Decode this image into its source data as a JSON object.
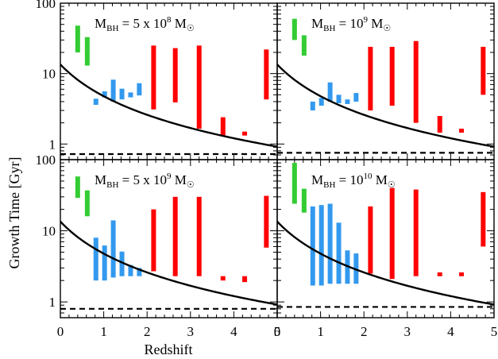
{
  "chart_data": {
    "type": "bar",
    "xlabel": "Redshift",
    "ylabel": "Growth Time [Gyr]",
    "xlim": [
      0,
      5
    ],
    "ylim": [
      0.6,
      100
    ],
    "yscale": "log",
    "grid": false,
    "x_ticks": [
      "0",
      "1",
      "2",
      "3",
      "4",
      "5"
    ],
    "y_ticks": [
      "1",
      "10",
      "100"
    ],
    "colors": {
      "green": "#33cc33",
      "blue": "#3399ee",
      "red": "#ff0000",
      "curve": "#000000"
    },
    "panels": [
      {
        "title_prefix": "M",
        "title_sub": "BH",
        "title_value": " = 5 x 10",
        "title_exp": "8",
        "title_unit": " M",
        "title_sun": "☉",
        "green": [
          {
            "x": 0.4,
            "lo": 20,
            "hi": 48
          },
          {
            "x": 0.62,
            "lo": 13,
            "hi": 33
          }
        ],
        "blue": [
          {
            "x": 0.82,
            "lo": 3.6,
            "hi": 4.4
          },
          {
            "x": 1.02,
            "lo": 4.6,
            "hi": 5.6
          },
          {
            "x": 1.22,
            "lo": 4.0,
            "hi": 8.2
          },
          {
            "x": 1.42,
            "lo": 4.3,
            "hi": 6.1
          },
          {
            "x": 1.62,
            "lo": 4.6,
            "hi": 5.4
          },
          {
            "x": 1.82,
            "lo": 4.9,
            "hi": 7.3
          }
        ],
        "red": [
          {
            "x": 2.15,
            "lo": 3.1,
            "hi": 25
          },
          {
            "x": 2.65,
            "lo": 3.9,
            "hi": 23
          },
          {
            "x": 3.2,
            "lo": 1.65,
            "hi": 25
          },
          {
            "x": 3.75,
            "lo": 1.28,
            "hi": 2.4
          },
          {
            "x": 4.25,
            "lo": 1.32,
            "hi": 1.5
          },
          {
            "x": 4.75,
            "lo": 4.3,
            "hi": 22
          }
        ],
        "curve_t0": 13.5,
        "dashed": 0.72
      },
      {
        "title_prefix": "M",
        "title_sub": "BH",
        "title_value": " = 10",
        "title_exp": "9",
        "title_unit": " M",
        "title_sun": "☉",
        "green": [
          {
            "x": 0.4,
            "lo": 30,
            "hi": 60
          },
          {
            "x": 0.62,
            "lo": 18,
            "hi": 35
          }
        ],
        "blue": [
          {
            "x": 0.82,
            "lo": 3.0,
            "hi": 4.0
          },
          {
            "x": 1.02,
            "lo": 3.5,
            "hi": 4.5
          },
          {
            "x": 1.22,
            "lo": 4.0,
            "hi": 7.5
          },
          {
            "x": 1.42,
            "lo": 3.8,
            "hi": 5.0
          },
          {
            "x": 1.62,
            "lo": 3.7,
            "hi": 4.3
          },
          {
            "x": 1.82,
            "lo": 4.0,
            "hi": 5.3
          }
        ],
        "red": [
          {
            "x": 2.15,
            "lo": 3.0,
            "hi": 24
          },
          {
            "x": 2.65,
            "lo": 3.5,
            "hi": 24
          },
          {
            "x": 3.2,
            "lo": 2.0,
            "hi": 29
          },
          {
            "x": 3.75,
            "lo": 1.45,
            "hi": 2.5
          },
          {
            "x": 4.25,
            "lo": 1.45,
            "hi": 1.65
          },
          {
            "x": 4.75,
            "lo": 5.0,
            "hi": 24
          }
        ],
        "curve_t0": 13.5,
        "dashed": 0.75
      },
      {
        "title_prefix": "M",
        "title_sub": "BH",
        "title_value": " = 5 x 10",
        "title_exp": "9",
        "title_unit": " M",
        "title_sun": "☉",
        "green": [
          {
            "x": 0.4,
            "lo": 29,
            "hi": 58
          },
          {
            "x": 0.62,
            "lo": 16,
            "hi": 37
          }
        ],
        "blue": [
          {
            "x": 0.82,
            "lo": 2.0,
            "hi": 8.0
          },
          {
            "x": 1.02,
            "lo": 2.0,
            "hi": 6.2
          },
          {
            "x": 1.22,
            "lo": 2.2,
            "hi": 14
          },
          {
            "x": 1.42,
            "lo": 2.3,
            "hi": 5.1
          },
          {
            "x": 1.62,
            "lo": 2.3,
            "hi": 3.3
          },
          {
            "x": 1.82,
            "lo": 2.3,
            "hi": 3.0
          }
        ],
        "red": [
          {
            "x": 2.15,
            "lo": 2.7,
            "hi": 20
          },
          {
            "x": 2.65,
            "lo": 2.3,
            "hi": 30
          },
          {
            "x": 3.2,
            "lo": 2.3,
            "hi": 30
          },
          {
            "x": 3.75,
            "lo": 2.0,
            "hi": 2.3
          },
          {
            "x": 4.25,
            "lo": 1.9,
            "hi": 2.3
          },
          {
            "x": 4.75,
            "lo": 5.8,
            "hi": 31
          }
        ],
        "curve_t0": 13.5,
        "dashed": 0.8
      },
      {
        "title_prefix": "M",
        "title_sub": "BH",
        "title_value": " = 10",
        "title_exp": "10",
        "title_unit": " M",
        "title_sun": "☉",
        "green": [
          {
            "x": 0.4,
            "lo": 24,
            "hi": 90
          },
          {
            "x": 0.62,
            "lo": 18,
            "hi": 39
          }
        ],
        "blue": [
          {
            "x": 0.82,
            "lo": 1.7,
            "hi": 22
          },
          {
            "x": 1.02,
            "lo": 1.7,
            "hi": 23
          },
          {
            "x": 1.22,
            "lo": 1.8,
            "hi": 24
          },
          {
            "x": 1.42,
            "lo": 1.8,
            "hi": 13
          },
          {
            "x": 1.62,
            "lo": 1.8,
            "hi": 5.3
          },
          {
            "x": 1.82,
            "lo": 1.8,
            "hi": 4.8
          }
        ],
        "red": [
          {
            "x": 2.15,
            "lo": 2.5,
            "hi": 22
          },
          {
            "x": 2.65,
            "lo": 2.1,
            "hi": 40
          },
          {
            "x": 3.2,
            "lo": 2.3,
            "hi": 38
          },
          {
            "x": 3.75,
            "lo": 2.3,
            "hi": 2.6
          },
          {
            "x": 4.25,
            "lo": 2.3,
            "hi": 2.6
          },
          {
            "x": 4.75,
            "lo": 6.0,
            "hi": 35
          }
        ],
        "curve_t0": 13.5,
        "dashed": 0.85
      }
    ]
  }
}
